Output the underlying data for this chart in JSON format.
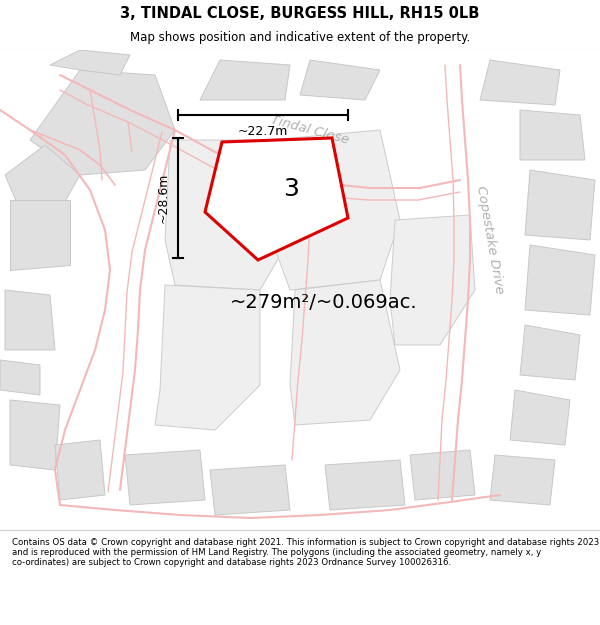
{
  "title_line1": "3, TINDAL CLOSE, BURGESS HILL, RH15 0LB",
  "title_line2": "Map shows position and indicative extent of the property.",
  "area_text": "~279m²/~0.069ac.",
  "dim_height": "~28.6m",
  "dim_width": "~22.7m",
  "plot_number": "3",
  "road_label1": "Tindal Close",
  "road_label2": "Copestake Drive",
  "footer_text": "Contains OS data © Crown copyright and database right 2021. This information is subject to Crown copyright and database rights 2023 and is reproduced with the permission of HM Land Registry. The polygons (including the associated geometry, namely x, y co-ordinates) are subject to Crown copyright and database rights 2023 Ordnance Survey 100026316.",
  "bg_color": "#ffffff",
  "map_bg": "#ffffff",
  "property_color": "#dd0000",
  "road_color": "#f5b8b8",
  "road_color2": "#e8a0a0",
  "building_color": "#e0e0e0",
  "building_edge": "#c8c8c8",
  "plot_bg_color": "#efefef",
  "plot_edge_color": "#cccccc",
  "label_color": "#b0b0b0",
  "title_color": "#000000",
  "footer_color": "#000000"
}
